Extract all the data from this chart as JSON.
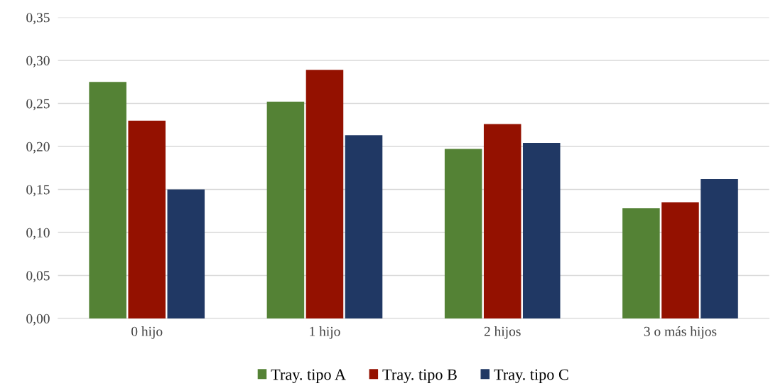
{
  "chart_data": {
    "type": "bar",
    "categories": [
      "0 hijo",
      "1 hijo",
      "2 hijos",
      "3 o más hijos"
    ],
    "series": [
      {
        "name": "Tray. tipo A",
        "color": "#548235",
        "values": [
          0.275,
          0.252,
          0.197,
          0.128
        ]
      },
      {
        "name": "Tray. tipo B",
        "color": "#941100",
        "values": [
          0.23,
          0.289,
          0.226,
          0.135
        ]
      },
      {
        "name": "Tray. tipo C",
        "color": "#203864",
        "values": [
          0.15,
          0.213,
          0.204,
          0.162
        ]
      }
    ],
    "ylim": [
      0,
      0.35
    ],
    "yticks": [
      {
        "value": 0,
        "label": "0,00"
      },
      {
        "value": 0.05,
        "label": "0,05"
      },
      {
        "value": 0.1,
        "label": "0,10"
      },
      {
        "value": 0.15,
        "label": "0,15"
      },
      {
        "value": 0.2,
        "label": "0,20"
      },
      {
        "value": 0.25,
        "label": "0,25"
      },
      {
        "value": 0.3,
        "label": "0,30"
      },
      {
        "value": 0.35,
        "label": "0,35"
      }
    ],
    "grid": "y",
    "legend": "bottom"
  }
}
